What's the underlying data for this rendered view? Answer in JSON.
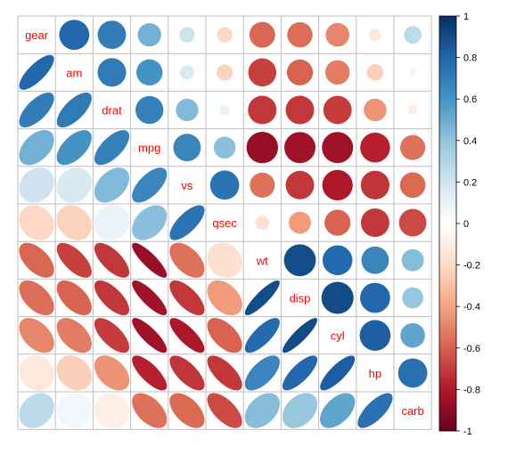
{
  "chart_data": {
    "type": "heatmap",
    "subtype": "correlation-matrix",
    "variables": [
      "gear",
      "am",
      "drat",
      "mpg",
      "vs",
      "qsec",
      "wt",
      "disp",
      "cyl",
      "hp",
      "carb"
    ],
    "matrix": [
      [
        1.0,
        0.79,
        0.7,
        0.48,
        0.21,
        -0.21,
        -0.58,
        -0.56,
        -0.49,
        -0.13,
        0.27
      ],
      [
        0.79,
        1.0,
        0.71,
        0.6,
        0.17,
        -0.23,
        -0.69,
        -0.59,
        -0.52,
        -0.24,
        0.06
      ],
      [
        0.7,
        0.71,
        1.0,
        0.68,
        0.44,
        0.09,
        -0.71,
        -0.71,
        -0.7,
        -0.45,
        -0.09
      ],
      [
        0.48,
        0.6,
        0.68,
        1.0,
        0.66,
        0.42,
        -0.87,
        -0.85,
        -0.85,
        -0.78,
        -0.55
      ],
      [
        0.21,
        0.17,
        0.44,
        0.66,
        1.0,
        0.74,
        -0.55,
        -0.71,
        -0.81,
        -0.72,
        -0.57
      ],
      [
        -0.21,
        -0.23,
        0.09,
        0.42,
        0.74,
        1.0,
        -0.17,
        -0.43,
        -0.59,
        -0.71,
        -0.66
      ],
      [
        -0.58,
        -0.69,
        -0.71,
        -0.87,
        -0.55,
        -0.17,
        1.0,
        0.89,
        0.78,
        0.66,
        0.43
      ],
      [
        -0.56,
        -0.59,
        -0.71,
        -0.85,
        -0.71,
        -0.43,
        0.89,
        1.0,
        0.9,
        0.79,
        0.39
      ],
      [
        -0.49,
        -0.52,
        -0.7,
        -0.85,
        -0.81,
        -0.59,
        0.78,
        0.9,
        1.0,
        0.83,
        0.53
      ],
      [
        -0.13,
        -0.24,
        -0.45,
        -0.78,
        -0.72,
        -0.71,
        0.66,
        0.79,
        0.83,
        1.0,
        0.75
      ],
      [
        0.27,
        0.06,
        -0.09,
        -0.55,
        -0.57,
        -0.66,
        0.43,
        0.39,
        0.53,
        0.75,
        1.0
      ]
    ],
    "upper_method": "circle",
    "lower_method": "ellipse",
    "diagonal": "variable-name",
    "colorbar": {
      "range": [
        -1,
        1
      ],
      "ticks": [
        "1",
        "0.8",
        "0.6",
        "0.4",
        "0.2",
        "0",
        "-0.2",
        "-0.4",
        "-0.6",
        "-0.8",
        "-1"
      ],
      "placement": "right"
    },
    "colors": {
      "negative_end": "#67001f",
      "neutral": "#ffffff",
      "positive_end": "#053061",
      "diagonal_label": "#ff0000",
      "grid": "#bebebe"
    },
    "title": "",
    "xlabel": "",
    "ylabel": ""
  }
}
